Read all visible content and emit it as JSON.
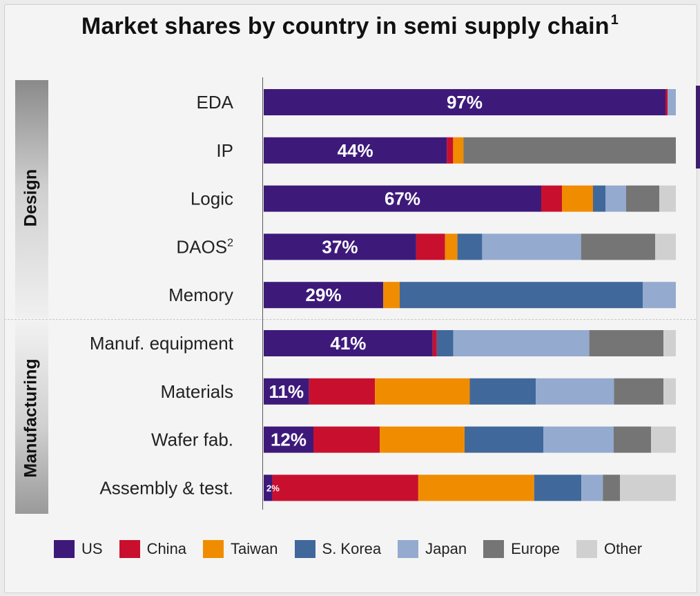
{
  "chart_data": {
    "type": "bar",
    "orientation": "horizontal",
    "stacked": true,
    "title": "Market shares by country in semi supply chain",
    "title_footnote": "1",
    "groups": [
      {
        "name": "Design",
        "categories": [
          "EDA",
          "IP",
          "Logic",
          "DAOS",
          "Memory"
        ]
      },
      {
        "name": "Manufacturing",
        "categories": [
          "Manuf. equipment",
          "Materials",
          "Wafer fab.",
          "Assembly & test."
        ]
      }
    ],
    "categories": [
      "EDA",
      "IP",
      "Logic",
      "DAOS",
      "Memory",
      "Manuf. equipment",
      "Materials",
      "Wafer fab.",
      "Assembly & test."
    ],
    "category_footnotes": {
      "DAOS": "2"
    },
    "xlim": [
      0,
      100
    ],
    "series": [
      {
        "name": "US",
        "color": "#3d1a7a",
        "values": [
          97,
          44,
          67,
          37,
          29,
          41,
          11,
          12,
          2
        ]
      },
      {
        "name": "China",
        "color": "#c8102e",
        "values": [
          0.5,
          1.5,
          5,
          7,
          0,
          1,
          16,
          16,
          34
        ]
      },
      {
        "name": "Taiwan",
        "color": "#f08c00",
        "values": [
          0,
          2.5,
          7.5,
          3,
          4,
          0,
          23,
          20.5,
          27
        ]
      },
      {
        "name": "S. Korea",
        "color": "#41689a",
        "values": [
          0,
          0,
          3,
          6,
          59,
          4,
          16,
          19,
          11
        ]
      },
      {
        "name": "Japan",
        "color": "#94aacf",
        "values": [
          2,
          0,
          5,
          24,
          8,
          33,
          19,
          17,
          5
        ]
      },
      {
        "name": "Europe",
        "color": "#757575",
        "values": [
          0,
          51,
          8,
          18,
          0,
          18,
          12,
          9,
          4
        ]
      },
      {
        "name": "Other",
        "color": "#d0d0d0",
        "values": [
          0,
          0,
          4,
          5,
          0,
          3,
          3,
          6,
          13
        ]
      }
    ],
    "data_labels": [
      "97%",
      "44%",
      "67%",
      "37%",
      "29%",
      "41%",
      "11%",
      "12%",
      "2%"
    ],
    "legend_position": "bottom"
  },
  "legend": [
    {
      "label": "US",
      "color": "#3d1a7a"
    },
    {
      "label": "China",
      "color": "#c8102e"
    },
    {
      "label": "Taiwan",
      "color": "#f08c00"
    },
    {
      "label": "S. Korea",
      "color": "#41689a"
    },
    {
      "label": "Japan",
      "color": "#94aacf"
    },
    {
      "label": "Europe",
      "color": "#757575"
    },
    {
      "label": "Other",
      "color": "#d0d0d0"
    }
  ]
}
